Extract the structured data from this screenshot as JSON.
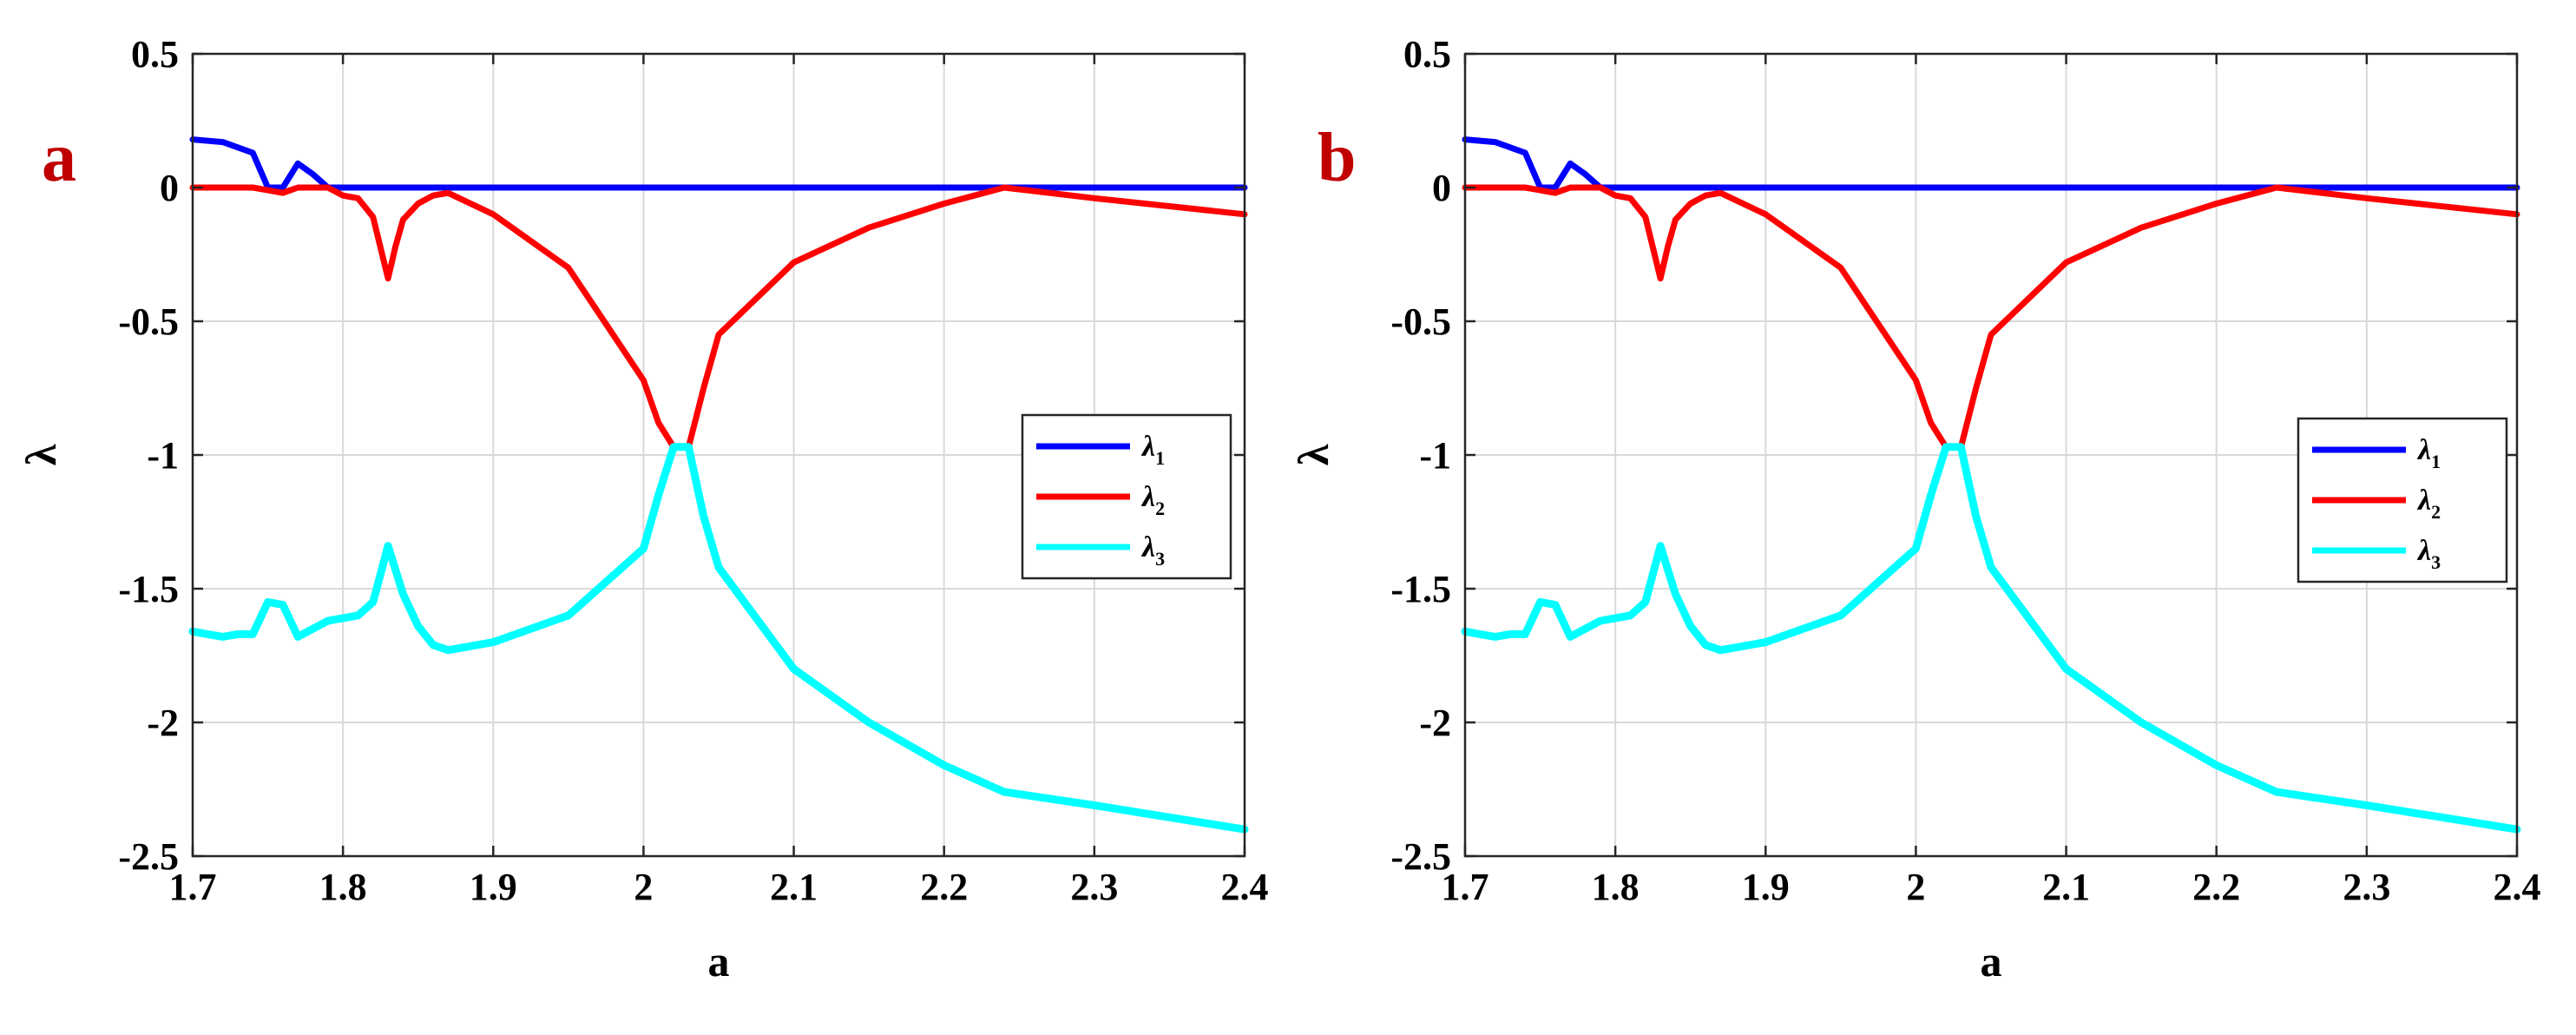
{
  "chart_data": [
    {
      "type": "line",
      "panel_label": "a",
      "xlabel": "a",
      "ylabel": "λ",
      "xlim": [
        1.7,
        2.4
      ],
      "ylim": [
        -2.5,
        0.5
      ],
      "xticks": [
        "1.7",
        "1.8",
        "1.9",
        "2",
        "2.1",
        "2.2",
        "2.3",
        "2.4"
      ],
      "yticks": [
        "0.5",
        "0",
        "-0.5",
        "-1",
        "-1.5",
        "-2",
        "-2.5"
      ],
      "grid": true,
      "legend_position": "right",
      "series": [
        {
          "name": "λ1",
          "color": "#0000ff",
          "x": [
            1.7,
            1.72,
            1.74,
            1.75,
            1.76,
            1.77,
            1.78,
            1.79,
            1.8,
            2.4
          ],
          "y": [
            0.18,
            0.17,
            0.13,
            0.0,
            0.0,
            0.09,
            0.05,
            0.0,
            0.0,
            0.0
          ]
        },
        {
          "name": "λ2",
          "color": "#ff0000",
          "x": [
            1.7,
            1.74,
            1.75,
            1.76,
            1.77,
            1.79,
            1.8,
            1.81,
            1.82,
            1.83,
            1.835,
            1.84,
            1.85,
            1.86,
            1.87,
            1.9,
            1.95,
            2.0,
            2.01,
            2.02,
            2.03,
            2.04,
            2.05,
            2.1,
            2.15,
            2.2,
            2.24,
            2.3,
            2.4
          ],
          "y": [
            0.0,
            0.0,
            -0.01,
            -0.02,
            0.0,
            0.0,
            -0.03,
            -0.04,
            -0.11,
            -0.34,
            -0.22,
            -0.12,
            -0.06,
            -0.03,
            -0.02,
            -0.1,
            -0.3,
            -0.72,
            -0.88,
            -0.97,
            -0.97,
            -0.75,
            -0.55,
            -0.28,
            -0.15,
            -0.06,
            0.0,
            -0.04,
            -0.1
          ]
        },
        {
          "name": "λ3",
          "color": "#00ffff",
          "x": [
            1.7,
            1.71,
            1.72,
            1.73,
            1.74,
            1.75,
            1.76,
            1.77,
            1.78,
            1.79,
            1.8,
            1.81,
            1.82,
            1.83,
            1.84,
            1.85,
            1.86,
            1.87,
            1.9,
            1.95,
            2.0,
            2.01,
            2.02,
            2.03,
            2.04,
            2.05,
            2.1,
            2.15,
            2.2,
            2.24,
            2.3,
            2.4
          ],
          "y": [
            -1.66,
            -1.67,
            -1.68,
            -1.67,
            -1.67,
            -1.55,
            -1.56,
            -1.68,
            -1.65,
            -1.62,
            -1.61,
            -1.6,
            -1.55,
            -1.34,
            -1.52,
            -1.64,
            -1.71,
            -1.73,
            -1.7,
            -1.6,
            -1.35,
            -1.15,
            -0.97,
            -0.97,
            -1.23,
            -1.42,
            -1.8,
            -2.0,
            -2.16,
            -2.26,
            -2.31,
            -2.4
          ]
        }
      ]
    },
    {
      "type": "line",
      "panel_label": "b",
      "xlabel": "a",
      "ylabel": "λ",
      "xlim": [
        1.7,
        2.4
      ],
      "ylim": [
        -2.5,
        0.5
      ],
      "xticks": [
        "1.7",
        "1.8",
        "1.9",
        "2",
        "2.1",
        "2.2",
        "2.3",
        "2.4"
      ],
      "yticks": [
        "0.5",
        "0",
        "-0.5",
        "-1",
        "-1.5",
        "-2",
        "-2.5"
      ],
      "grid": true,
      "legend_position": "right",
      "series": [
        {
          "name": "λ1",
          "color": "#0000ff",
          "x": [
            1.7,
            1.72,
            1.74,
            1.75,
            1.76,
            1.77,
            1.78,
            1.79,
            1.8,
            2.4
          ],
          "y": [
            0.18,
            0.17,
            0.13,
            0.0,
            0.0,
            0.09,
            0.05,
            0.0,
            0.0,
            0.0
          ]
        },
        {
          "name": "λ2",
          "color": "#ff0000",
          "x": [
            1.7,
            1.74,
            1.75,
            1.76,
            1.77,
            1.79,
            1.8,
            1.81,
            1.82,
            1.83,
            1.835,
            1.84,
            1.85,
            1.86,
            1.87,
            1.9,
            1.95,
            2.0,
            2.01,
            2.02,
            2.03,
            2.04,
            2.05,
            2.1,
            2.15,
            2.2,
            2.24,
            2.3,
            2.4
          ],
          "y": [
            0.0,
            0.0,
            -0.01,
            -0.02,
            0.0,
            0.0,
            -0.03,
            -0.04,
            -0.11,
            -0.34,
            -0.22,
            -0.12,
            -0.06,
            -0.03,
            -0.02,
            -0.1,
            -0.3,
            -0.72,
            -0.88,
            -0.97,
            -0.97,
            -0.75,
            -0.55,
            -0.28,
            -0.15,
            -0.06,
            0.0,
            -0.04,
            -0.1
          ]
        },
        {
          "name": "λ3",
          "color": "#00ffff",
          "x": [
            1.7,
            1.71,
            1.72,
            1.73,
            1.74,
            1.75,
            1.76,
            1.77,
            1.78,
            1.79,
            1.8,
            1.81,
            1.82,
            1.83,
            1.84,
            1.85,
            1.86,
            1.87,
            1.9,
            1.95,
            2.0,
            2.01,
            2.02,
            2.03,
            2.04,
            2.05,
            2.1,
            2.15,
            2.2,
            2.24,
            2.3,
            2.4
          ],
          "y": [
            -1.66,
            -1.67,
            -1.68,
            -1.67,
            -1.67,
            -1.55,
            -1.56,
            -1.68,
            -1.65,
            -1.62,
            -1.61,
            -1.6,
            -1.55,
            -1.34,
            -1.52,
            -1.64,
            -1.71,
            -1.73,
            -1.7,
            -1.6,
            -1.35,
            -1.15,
            -0.97,
            -0.97,
            -1.23,
            -1.42,
            -1.8,
            -2.0,
            -2.16,
            -2.26,
            -2.31,
            -2.4
          ]
        }
      ]
    }
  ]
}
